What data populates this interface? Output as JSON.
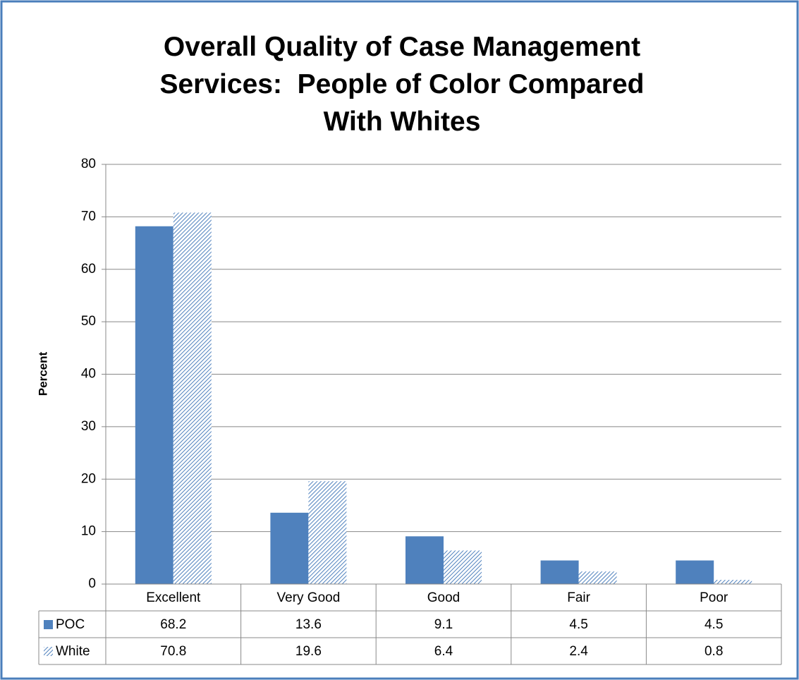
{
  "chart_data": {
    "type": "bar",
    "title": "Overall Quality of Case Management Services:  People of Color Compared With Whites",
    "y_label": "Percent",
    "categories": [
      "Excellent",
      "Very Good",
      "Good",
      "Fair",
      "Poor"
    ],
    "series": [
      {
        "name": "POC",
        "color": "#4f81bd",
        "values": [
          68.2,
          13.6,
          9.1,
          4.5,
          4.5
        ]
      },
      {
        "name": "White",
        "color": "#4f81bd",
        "pattern": "hatch",
        "values": [
          70.8,
          19.6,
          6.4,
          2.4,
          0.8
        ]
      }
    ],
    "ylim": [
      0,
      80
    ],
    "yticks": [
      0,
      10,
      20,
      30,
      40,
      50,
      60,
      70,
      80
    ],
    "grid": true,
    "data_table": true
  }
}
